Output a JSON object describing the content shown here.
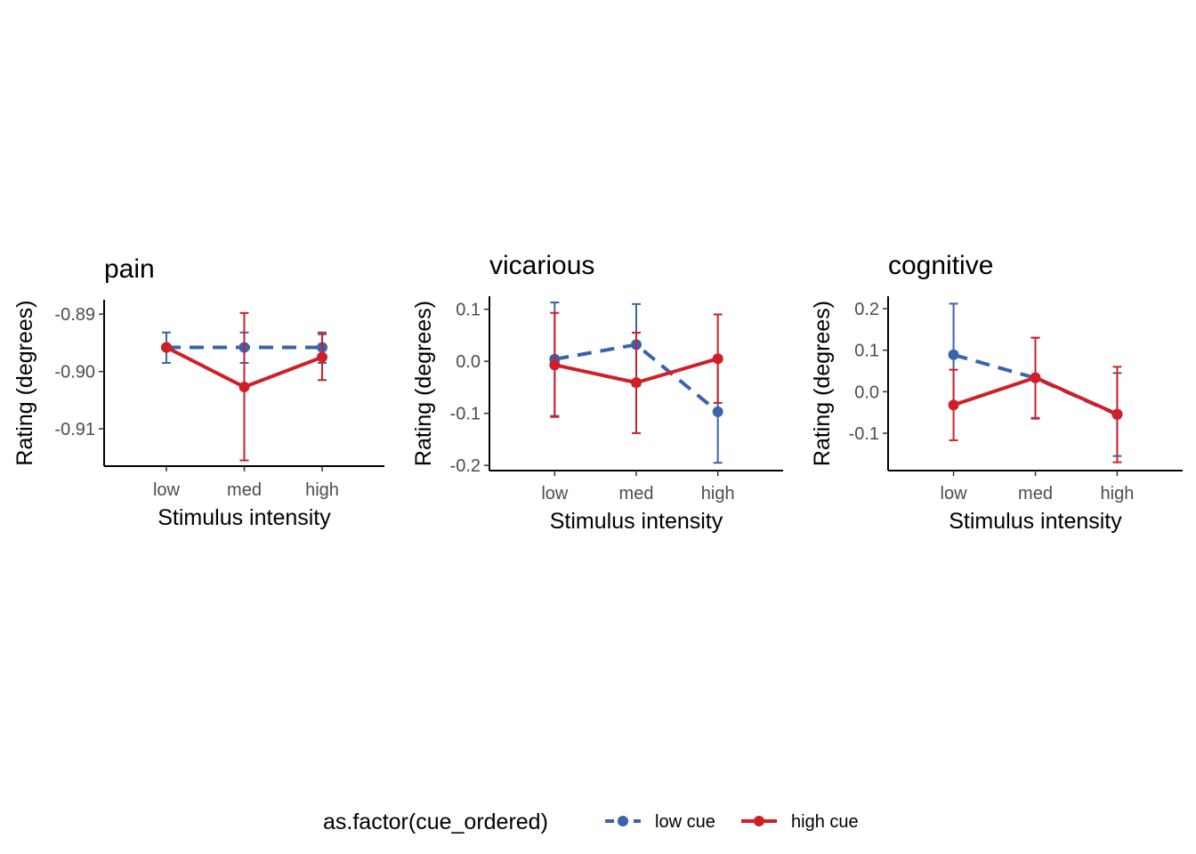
{
  "chart_data": [
    {
      "type": "line",
      "title": "pain",
      "xlabel": "Stimulus intensity",
      "ylabel": "Rating (degrees)",
      "categories": [
        "low",
        "med",
        "high"
      ],
      "ylim": [
        -0.9165,
        -0.8875
      ],
      "yticks": [
        -0.91,
        -0.9,
        -0.89
      ],
      "ytick_labels": [
        "-0.91",
        "-0.90",
        "-0.89"
      ],
      "series": [
        {
          "name": "low cue",
          "color": "#3a62ad",
          "dash": "dashed",
          "values": [
            -0.8958,
            -0.8958,
            -0.8958
          ],
          "lower": [
            -0.8985,
            -0.8985,
            -0.8985
          ],
          "upper": [
            -0.8932,
            -0.8932,
            -0.8932
          ]
        },
        {
          "name": "high cue",
          "color": "#d01f26",
          "dash": "solid",
          "values": [
            -0.8958,
            -0.9027,
            -0.8975
          ],
          "lower": [
            -0.8958,
            -0.9155,
            -0.9015
          ],
          "upper": [
            -0.8958,
            -0.8898,
            -0.8935
          ]
        }
      ]
    },
    {
      "type": "line",
      "title": "vicarious",
      "xlabel": "Stimulus intensity",
      "ylabel": "Rating (degrees)",
      "categories": [
        "low",
        "med",
        "high"
      ],
      "ylim": [
        -0.21,
        0.125
      ],
      "yticks": [
        -0.2,
        -0.1,
        0.0,
        0.1
      ],
      "ytick_labels": [
        "-0.2",
        "-0.1",
        "0.0",
        "0.1"
      ],
      "series": [
        {
          "name": "low cue",
          "color": "#3a62ad",
          "dash": "dashed",
          "values": [
            0.004,
            0.032,
            -0.097
          ],
          "lower": [
            -0.105,
            -0.047,
            -0.195
          ],
          "upper": [
            0.113,
            0.11,
            0.0
          ]
        },
        {
          "name": "high cue",
          "color": "#d01f26",
          "dash": "solid",
          "values": [
            -0.007,
            -0.041,
            0.005
          ],
          "lower": [
            -0.107,
            -0.138,
            -0.08
          ],
          "upper": [
            0.093,
            0.055,
            0.09
          ]
        }
      ]
    },
    {
      "type": "line",
      "title": "cognitive",
      "xlabel": "Stimulus intensity",
      "ylabel": "Rating (degrees)",
      "categories": [
        "low",
        "med",
        "high"
      ],
      "ylim": [
        -0.19,
        0.23
      ],
      "yticks": [
        -0.1,
        0.0,
        0.1,
        0.2
      ],
      "ytick_labels": [
        "-0.1",
        "0.0",
        "0.1",
        "0.2"
      ],
      "series": [
        {
          "name": "low cue",
          "color": "#3a62ad",
          "dash": "dashed",
          "values": [
            0.089,
            0.033,
            -0.055
          ],
          "lower": [
            -0.035,
            -0.063,
            -0.155
          ],
          "upper": [
            0.212,
            0.13,
            0.045
          ]
        },
        {
          "name": "high cue",
          "color": "#d01f26",
          "dash": "solid",
          "values": [
            -0.032,
            0.034,
            -0.054
          ],
          "lower": [
            -0.117,
            -0.065,
            -0.17
          ],
          "upper": [
            0.053,
            0.13,
            0.06
          ]
        }
      ]
    }
  ],
  "legend": {
    "title": "as.factor(cue_ordered)",
    "placement": "bottom",
    "items": [
      {
        "label": "low cue",
        "color": "#3a62ad",
        "dash": "dashed"
      },
      {
        "label": "high cue",
        "color": "#d01f26",
        "dash": "solid"
      }
    ]
  }
}
